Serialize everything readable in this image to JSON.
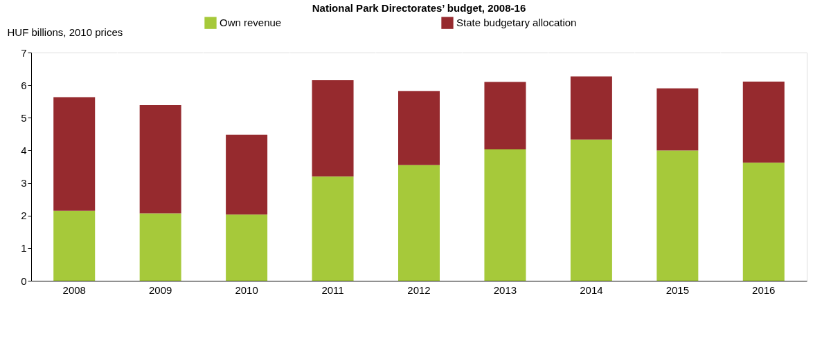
{
  "chart_data": {
    "type": "bar",
    "title": "National Park Directorates’ budget, 2008-16",
    "ylabel": "HUF billions, 2010 prices",
    "categories": [
      "2008",
      "2009",
      "2010",
      "2011",
      "2012",
      "2013",
      "2014",
      "2015",
      "2016"
    ],
    "stacked": true,
    "series": [
      {
        "name": "Own revenue",
        "color": "#a6c93a",
        "values": [
          2.15,
          2.07,
          2.03,
          3.2,
          3.55,
          4.03,
          4.33,
          4.0,
          3.62
        ]
      },
      {
        "name": "State budgetary allocation",
        "color": "#962a2e",
        "values": [
          3.48,
          3.32,
          2.45,
          2.95,
          2.27,
          2.07,
          1.94,
          1.9,
          2.49
        ]
      }
    ],
    "ylim": [
      0,
      7
    ],
    "yticks": [
      0,
      1,
      2,
      3,
      4,
      5,
      6,
      7
    ],
    "grid": "x",
    "legend": "top"
  }
}
